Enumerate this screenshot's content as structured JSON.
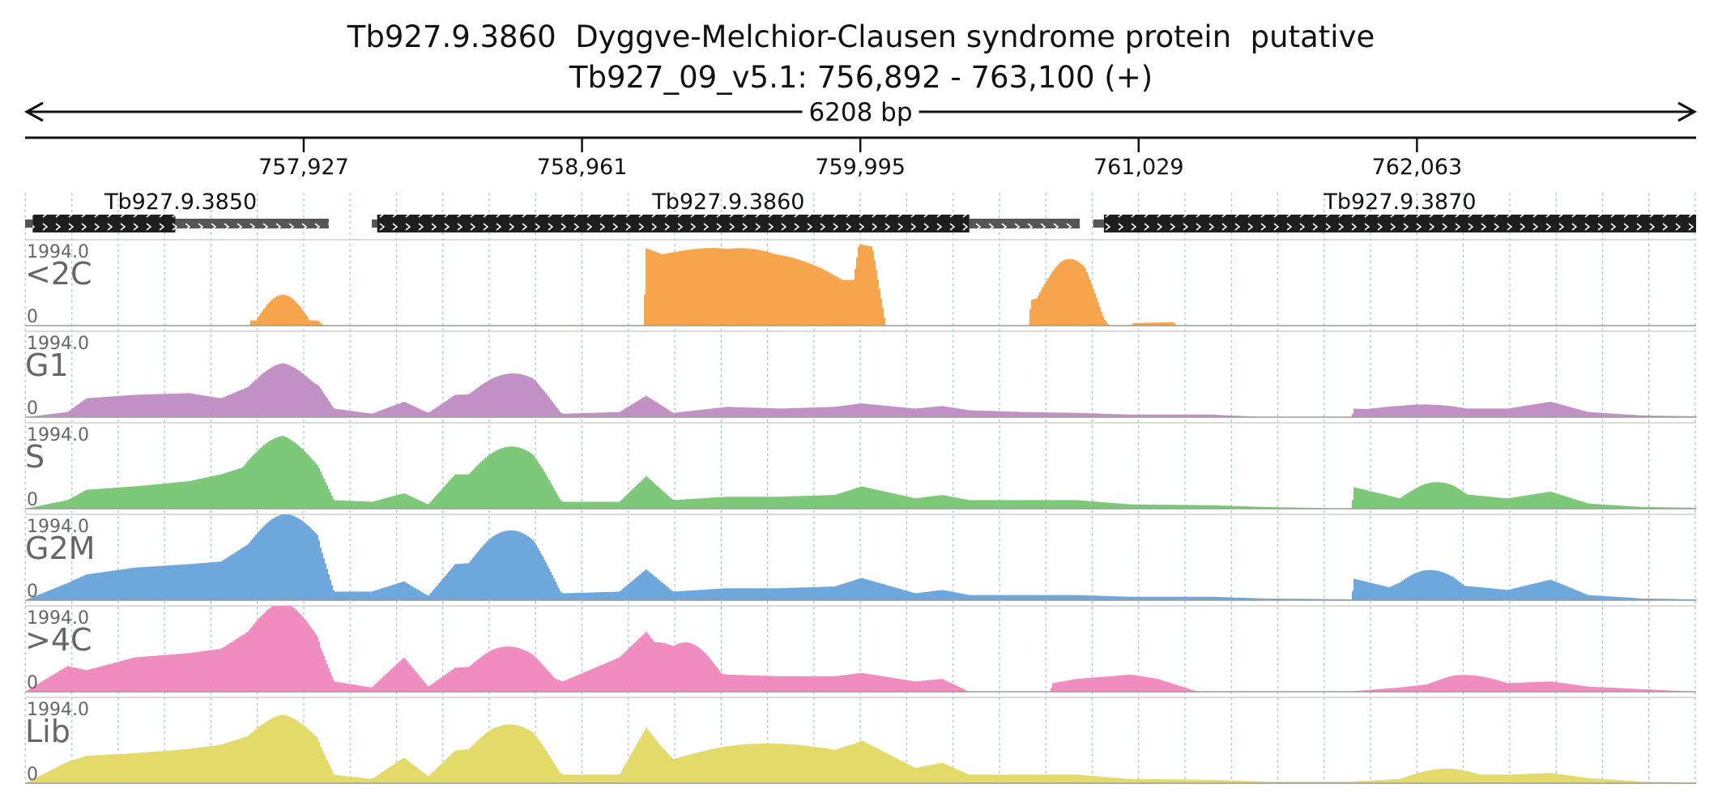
{
  "chart_data": {
    "type": "area",
    "title": "Tb927.9.3860  Dyggve-Melchior-Clausen syndrome protein  putative",
    "subtitle": "Tb927_09_v5.1: 756,892 - 763,100 (+)",
    "span_label": "6208 bp",
    "xlim": [
      756892,
      763100
    ],
    "x_ticks": [
      757927,
      758961,
      759995,
      761029,
      762063
    ],
    "x_tick_labels": [
      "757,927",
      "758,961",
      "759,995",
      "761,029",
      "762,063"
    ],
    "grid": true,
    "genes": [
      {
        "name": "Tb927.9.3850",
        "utr5": [
          756892,
          756920
        ],
        "cds": [
          756920,
          757450
        ],
        "utr3": [
          757450,
          758020
        ]
      },
      {
        "name": "Tb927.9.3860",
        "utr5": [
          758180,
          758200
        ],
        "cds": [
          758200,
          760400
        ],
        "utr3": [
          760400,
          760810
        ]
      },
      {
        "name": "Tb927.9.3870",
        "utr5": [
          760860,
          760900
        ],
        "cds": [
          760900,
          763100
        ],
        "utr3": null
      }
    ],
    "tracks": [
      {
        "name": "<2C",
        "max_label": "1994.0",
        "min_label": "0",
        "color": "#f6a54c",
        "profile": [
          [
            756892,
            0
          ],
          [
            757725,
            0
          ],
          [
            757730,
            0.06
          ],
          [
            757980,
            0.06
          ],
          [
            758000,
            0.005
          ],
          [
            758550,
            0.005
          ],
          [
            759190,
            0
          ],
          [
            759200,
            0.9
          ],
          [
            759500,
            0.55
          ],
          [
            759680,
            0.48
          ],
          [
            759850,
            0.53
          ],
          [
            759970,
            0.53
          ],
          [
            759990,
            0.95
          ],
          [
            760040,
            0.92
          ],
          [
            760090,
            0
          ],
          [
            760620,
            0
          ],
          [
            760630,
            0.3
          ],
          [
            760740,
            0.38
          ],
          [
            760830,
            0.37
          ],
          [
            760920,
            0
          ],
          [
            761000,
            0
          ],
          [
            761010,
            0.03
          ],
          [
            761160,
            0.04
          ],
          [
            761170,
            0
          ],
          [
            763100,
            0
          ]
        ],
        "bumps": [
          [
            757750,
            757950,
            0.3
          ],
          [
            759260,
            759930,
            0.38
          ],
          [
            760650,
            760900,
            0.4
          ]
        ]
      },
      {
        "name": "G1",
        "max_label": "1994.0",
        "min_label": "0",
        "color": "#c190c4",
        "profile": [
          [
            756892,
            0
          ],
          [
            757050,
            0.06
          ],
          [
            757120,
            0.22
          ],
          [
            757300,
            0.26
          ],
          [
            757500,
            0.28
          ],
          [
            757620,
            0.22
          ],
          [
            757720,
            0.35
          ],
          [
            757850,
            0.45
          ],
          [
            757980,
            0.38
          ],
          [
            758040,
            0.1
          ],
          [
            758180,
            0.04
          ],
          [
            758300,
            0.18
          ],
          [
            758390,
            0.05
          ],
          [
            758490,
            0.26
          ],
          [
            758620,
            0.27
          ],
          [
            758780,
            0.25
          ],
          [
            758890,
            0.04
          ],
          [
            759100,
            0.06
          ],
          [
            759200,
            0.25
          ],
          [
            759300,
            0.05
          ],
          [
            759500,
            0.12
          ],
          [
            759700,
            0.1
          ],
          [
            759900,
            0.12
          ],
          [
            760000,
            0.16
          ],
          [
            760200,
            0.1
          ],
          [
            760300,
            0.13
          ],
          [
            760400,
            0.08
          ],
          [
            760600,
            0.06
          ],
          [
            760800,
            0.05
          ],
          [
            761000,
            0.03
          ],
          [
            761300,
            0.03
          ],
          [
            761500,
            0
          ],
          [
            761820,
            0
          ],
          [
            761830,
            0.1
          ],
          [
            762000,
            0.08
          ],
          [
            762200,
            0.1
          ],
          [
            762400,
            0.1
          ],
          [
            762560,
            0.18
          ],
          [
            762700,
            0.06
          ],
          [
            762900,
            0.02
          ],
          [
            763100,
            0.01
          ]
        ],
        "bumps": [
          [
            757720,
            757970,
            0.18
          ],
          [
            758540,
            758880,
            0.25
          ],
          [
            761880,
            762250,
            0.06
          ]
        ]
      },
      {
        "name": "S",
        "max_label": "1994.0",
        "min_label": "0",
        "color": "#7ec87a",
        "profile": [
          [
            756892,
            0
          ],
          [
            757050,
            0.1
          ],
          [
            757120,
            0.22
          ],
          [
            757300,
            0.26
          ],
          [
            757500,
            0.32
          ],
          [
            757620,
            0.4
          ],
          [
            757720,
            0.5
          ],
          [
            757850,
            0.6
          ],
          [
            757980,
            0.5
          ],
          [
            758040,
            0.1
          ],
          [
            758180,
            0.08
          ],
          [
            758300,
            0.18
          ],
          [
            758390,
            0.05
          ],
          [
            758490,
            0.4
          ],
          [
            758620,
            0.4
          ],
          [
            758780,
            0.35
          ],
          [
            758890,
            0.08
          ],
          [
            759100,
            0.08
          ],
          [
            759200,
            0.38
          ],
          [
            759300,
            0.1
          ],
          [
            759500,
            0.14
          ],
          [
            759700,
            0.14
          ],
          [
            759900,
            0.16
          ],
          [
            760000,
            0.26
          ],
          [
            760200,
            0.12
          ],
          [
            760300,
            0.16
          ],
          [
            760400,
            0.1
          ],
          [
            760600,
            0.1
          ],
          [
            760800,
            0.1
          ],
          [
            761000,
            0.05
          ],
          [
            761300,
            0.04
          ],
          [
            761500,
            0.02
          ],
          [
            761820,
            0
          ],
          [
            761830,
            0.25
          ],
          [
            762000,
            0.12
          ],
          [
            762200,
            0.18
          ],
          [
            762400,
            0.12
          ],
          [
            762560,
            0.2
          ],
          [
            762700,
            0.06
          ],
          [
            762900,
            0.02
          ],
          [
            763100,
            0.01
          ]
        ],
        "bumps": [
          [
            757700,
            757980,
            0.25
          ],
          [
            758540,
            758880,
            0.35
          ],
          [
            762000,
            762250,
            0.15
          ]
        ]
      },
      {
        "name": "G2M",
        "max_label": "1994.0",
        "min_label": "0",
        "color": "#6ea7dc",
        "profile": [
          [
            756892,
            0
          ],
          [
            757050,
            0.2
          ],
          [
            757120,
            0.3
          ],
          [
            757300,
            0.38
          ],
          [
            757500,
            0.42
          ],
          [
            757620,
            0.45
          ],
          [
            757720,
            0.65
          ],
          [
            757850,
            0.7
          ],
          [
            757980,
            0.72
          ],
          [
            758040,
            0.1
          ],
          [
            758180,
            0.1
          ],
          [
            758300,
            0.22
          ],
          [
            758390,
            0.05
          ],
          [
            758490,
            0.42
          ],
          [
            758620,
            0.45
          ],
          [
            758780,
            0.38
          ],
          [
            758890,
            0.08
          ],
          [
            759100,
            0.1
          ],
          [
            759200,
            0.36
          ],
          [
            759300,
            0.1
          ],
          [
            759500,
            0.14
          ],
          [
            759700,
            0.14
          ],
          [
            759900,
            0.16
          ],
          [
            760000,
            0.26
          ],
          [
            760200,
            0.08
          ],
          [
            760300,
            0.12
          ],
          [
            760400,
            0.06
          ],
          [
            760600,
            0.06
          ],
          [
            760800,
            0.06
          ],
          [
            761000,
            0.04
          ],
          [
            761300,
            0.04
          ],
          [
            761500,
            0.02
          ],
          [
            761820,
            0.01
          ],
          [
            761830,
            0.25
          ],
          [
            762000,
            0.12
          ],
          [
            762200,
            0.18
          ],
          [
            762400,
            0.12
          ],
          [
            762560,
            0.24
          ],
          [
            762700,
            0.06
          ],
          [
            762900,
            0.02
          ],
          [
            763100,
            0.01
          ]
        ],
        "bumps": [
          [
            757720,
            757990,
            0.3
          ],
          [
            758540,
            758880,
            0.4
          ],
          [
            761960,
            762240,
            0.2
          ]
        ]
      },
      {
        "name": ">4C",
        "max_label": "1994.0",
        "min_label": "0",
        "color": "#f08cbf",
        "profile": [
          [
            756892,
            0
          ],
          [
            757050,
            0.3
          ],
          [
            757120,
            0.25
          ],
          [
            757300,
            0.4
          ],
          [
            757500,
            0.45
          ],
          [
            757620,
            0.5
          ],
          [
            757720,
            0.7
          ],
          [
            757850,
            0.75
          ],
          [
            757980,
            0.6
          ],
          [
            758040,
            0.12
          ],
          [
            758180,
            0.05
          ],
          [
            758300,
            0.4
          ],
          [
            758390,
            0.06
          ],
          [
            758490,
            0.28
          ],
          [
            758620,
            0.3
          ],
          [
            758780,
            0.25
          ],
          [
            758890,
            0.12
          ],
          [
            759100,
            0.4
          ],
          [
            759200,
            0.7
          ],
          [
            759300,
            0.3
          ],
          [
            759500,
            0.2
          ],
          [
            759700,
            0.18
          ],
          [
            759900,
            0.18
          ],
          [
            760000,
            0.22
          ],
          [
            760200,
            0.12
          ],
          [
            760300,
            0.15
          ],
          [
            760400,
            0
          ],
          [
            760700,
            0
          ],
          [
            760710,
            0.1
          ],
          [
            760800,
            0.15
          ],
          [
            761000,
            0.2
          ],
          [
            761100,
            0.15
          ],
          [
            761250,
            0
          ],
          [
            761800,
            0
          ],
          [
            762000,
            0.05
          ],
          [
            762200,
            0.12
          ],
          [
            762400,
            0.1
          ],
          [
            762560,
            0.12
          ],
          [
            762700,
            0.06
          ],
          [
            762900,
            0.03
          ],
          [
            763100,
            0
          ]
        ],
        "bumps": [
          [
            757720,
            757990,
            0.3
          ],
          [
            758540,
            758860,
            0.25
          ],
          [
            759230,
            759480,
            0.3
          ],
          [
            762100,
            762400,
            0.08
          ]
        ]
      },
      {
        "name": "Lib",
        "max_label": "1994.0",
        "min_label": "0",
        "color": "#e3da6a",
        "profile": [
          [
            756892,
            0
          ],
          [
            757050,
            0.25
          ],
          [
            757120,
            0.32
          ],
          [
            757300,
            0.35
          ],
          [
            757500,
            0.4
          ],
          [
            757620,
            0.45
          ],
          [
            757720,
            0.55
          ],
          [
            757850,
            0.6
          ],
          [
            757980,
            0.5
          ],
          [
            758040,
            0.1
          ],
          [
            758180,
            0.05
          ],
          [
            758300,
            0.3
          ],
          [
            758390,
            0.08
          ],
          [
            758490,
            0.38
          ],
          [
            758620,
            0.42
          ],
          [
            758780,
            0.35
          ],
          [
            758890,
            0.1
          ],
          [
            759100,
            0.1
          ],
          [
            759200,
            0.65
          ],
          [
            759300,
            0.25
          ],
          [
            759500,
            0.3
          ],
          [
            759700,
            0.32
          ],
          [
            759900,
            0.34
          ],
          [
            760000,
            0.5
          ],
          [
            760200,
            0.18
          ],
          [
            760300,
            0.24
          ],
          [
            760400,
            0.1
          ],
          [
            760600,
            0.1
          ],
          [
            760800,
            0.1
          ],
          [
            761000,
            0.05
          ],
          [
            761300,
            0.04
          ],
          [
            761500,
            0.02
          ],
          [
            761820,
            0.02
          ],
          [
            762000,
            0.05
          ],
          [
            762200,
            0.1
          ],
          [
            762400,
            0.1
          ],
          [
            762560,
            0.12
          ],
          [
            762700,
            0.06
          ],
          [
            762900,
            0.02
          ],
          [
            763100,
            0.01
          ]
        ],
        "bumps": [
          [
            757720,
            757990,
            0.2
          ],
          [
            758540,
            758880,
            0.3
          ],
          [
            759250,
            759980,
            0.15
          ],
          [
            762000,
            762300,
            0.08
          ]
        ]
      }
    ]
  }
}
